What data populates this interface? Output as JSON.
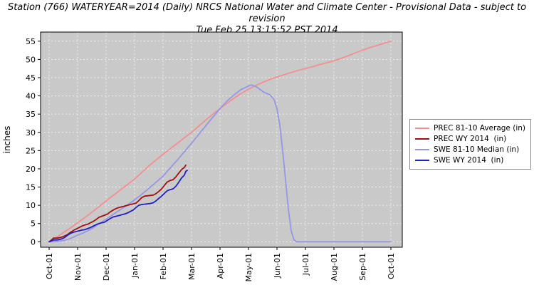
{
  "chart_data": {
    "type": "line",
    "title": "Station (766) WATERYEAR=2014 (Daily) NRCS National Water and Climate Center - Provisional Data - subject to revision",
    "subtitle": "Tue Feb 25 13:15:52 PST 2014",
    "ylabel": "inches",
    "ylim": [
      -1.5,
      57.5
    ],
    "yticks": [
      0,
      5,
      10,
      15,
      20,
      25,
      30,
      35,
      40,
      45,
      50,
      55
    ],
    "xlim": [
      -0.3,
      12.4
    ],
    "xticks": [
      0,
      1,
      2,
      3,
      4,
      5,
      6,
      7,
      8,
      9,
      10,
      11,
      12
    ],
    "xtick_labels": [
      "Oct-01",
      "Nov-01",
      "Dec-01",
      "Jan-01",
      "Feb-01",
      "Mar-01",
      "Apr-01",
      "May-01",
      "Jun-01",
      "Jul-01",
      "Aug-01",
      "Sep-01",
      "Oct-01"
    ],
    "plot_bg": "#c9c9c9",
    "grid_color": "#efefef",
    "axis_color": "#000000",
    "grid": true,
    "legend_position": "right",
    "draw_order": [
      0,
      2,
      1,
      3
    ],
    "series": [
      {
        "name": "PREC 81-10 Average (in)",
        "color": "#f58f8f",
        "x": [
          0,
          0.25,
          0.5,
          0.75,
          1,
          1.25,
          1.5,
          1.75,
          2,
          2.25,
          2.5,
          2.75,
          3,
          3.25,
          3.5,
          3.75,
          4,
          4.25,
          4.5,
          4.75,
          5,
          5.25,
          5.5,
          5.75,
          6,
          6.25,
          6.5,
          6.75,
          7,
          7.25,
          7.5,
          7.75,
          8,
          8.25,
          8.5,
          8.75,
          9,
          9.25,
          9.5,
          9.75,
          10,
          10.25,
          10.5,
          10.75,
          11,
          11.25,
          11.5,
          11.75,
          12
        ],
        "values": [
          0,
          1.2,
          2.5,
          3.8,
          5.2,
          6.6,
          8.1,
          9.6,
          11.2,
          12.7,
          14.2,
          15.7,
          17.2,
          19,
          20.8,
          22.4,
          24,
          25.5,
          27,
          28.5,
          30,
          31.7,
          33.4,
          35,
          36.5,
          38,
          39.4,
          40.7,
          41.8,
          42.8,
          43.7,
          44.5,
          45.2,
          45.8,
          46.4,
          47,
          47.5,
          48,
          48.6,
          49.1,
          49.6,
          50.3,
          51,
          51.8,
          52.5,
          53.2,
          53.8,
          54.4,
          55
        ]
      },
      {
        "name": "PREC WY 2014  (in)",
        "color": "#a01010",
        "x": [
          0,
          0.1,
          0.15,
          0.25,
          0.35,
          0.45,
          0.55,
          0.65,
          0.75,
          0.85,
          0.95,
          1.05,
          1.15,
          1.25,
          1.35,
          1.45,
          1.55,
          1.65,
          1.75,
          1.85,
          1.95,
          2.05,
          2.15,
          2.25,
          2.35,
          2.45,
          2.55,
          2.65,
          2.75,
          2.85,
          2.95,
          3.05,
          3.15,
          3.25,
          3.35,
          3.45,
          3.55,
          3.65,
          3.75,
          3.85,
          3.95,
          4.05,
          4.15,
          4.25,
          4.35,
          4.45,
          4.55,
          4.65,
          4.75,
          4.8
        ],
        "values": [
          0,
          0.6,
          1,
          1,
          1.1,
          1.3,
          1.6,
          2,
          2.6,
          3.1,
          3.5,
          3.9,
          4.3,
          4.6,
          4.8,
          5.2,
          5.6,
          6.1,
          6.7,
          7,
          7.3,
          7.6,
          8.2,
          8.7,
          9.1,
          9.4,
          9.6,
          9.8,
          10,
          10.2,
          10.4,
          10.6,
          11.3,
          12.1,
          12.5,
          12.6,
          12.7,
          12.8,
          13.2,
          13.8,
          14.5,
          15.5,
          16.4,
          16.8,
          17,
          17.8,
          18.8,
          19.8,
          20.4,
          21
        ]
      },
      {
        "name": "SWE 81-10 Median (in)",
        "color": "#9597e6",
        "x": [
          0,
          0.25,
          0.5,
          0.75,
          1,
          1.25,
          1.5,
          1.75,
          2,
          2.25,
          2.5,
          2.75,
          3,
          3.25,
          3.5,
          3.75,
          4,
          4.25,
          4.5,
          4.75,
          5,
          5.25,
          5.5,
          5.75,
          6,
          6.25,
          6.5,
          6.75,
          7,
          7.1,
          7.25,
          7.4,
          7.5,
          7.6,
          7.75,
          7.9,
          8,
          8.1,
          8.2,
          8.3,
          8.4,
          8.5,
          8.6,
          8.7,
          9,
          9.5,
          10,
          10.5,
          11,
          11.5,
          12
        ],
        "values": [
          0,
          0.1,
          0.3,
          0.9,
          1.8,
          2.6,
          3.6,
          4.9,
          6.2,
          7.5,
          8.8,
          10.1,
          11.5,
          13,
          14.6,
          16.3,
          18,
          20.2,
          22.4,
          24.7,
          27,
          29.4,
          31.8,
          34.2,
          36.5,
          38.6,
          40.3,
          41.8,
          42.7,
          43,
          42.6,
          41.8,
          41.2,
          40.8,
          40.3,
          39,
          36.5,
          32,
          25,
          17,
          9,
          3,
          0.5,
          0,
          0,
          0,
          0,
          0,
          0,
          0,
          0
        ]
      },
      {
        "name": "SWE WY 2014  (in)",
        "color": "#2020c0",
        "x": [
          0,
          0.1,
          0.15,
          0.25,
          0.35,
          0.45,
          0.55,
          0.65,
          0.75,
          0.85,
          0.95,
          1.05,
          1.15,
          1.25,
          1.35,
          1.45,
          1.55,
          1.65,
          1.75,
          1.85,
          1.95,
          2.05,
          2.15,
          2.25,
          2.35,
          2.45,
          2.55,
          2.65,
          2.75,
          2.85,
          2.95,
          3.05,
          3.15,
          3.25,
          3.35,
          3.45,
          3.55,
          3.65,
          3.75,
          3.85,
          3.95,
          4.05,
          4.15,
          4.25,
          4.35,
          4.45,
          4.55,
          4.65,
          4.75,
          4.8,
          4.85
        ],
        "values": [
          0,
          0.3,
          0.5,
          0.5,
          0.6,
          0.8,
          1.2,
          1.8,
          2.3,
          2.6,
          2.8,
          3,
          3.2,
          3.3,
          3.6,
          3.9,
          4.3,
          4.7,
          5,
          5.2,
          5.4,
          5.9,
          6.4,
          6.8,
          7,
          7.2,
          7.4,
          7.6,
          7.9,
          8.3,
          8.7,
          9.4,
          10,
          10.2,
          10.3,
          10.4,
          10.5,
          10.7,
          11.2,
          11.9,
          12.5,
          13.3,
          14,
          14.3,
          14.5,
          15.2,
          16.3,
          17.5,
          18.3,
          19.3,
          19.6
        ]
      }
    ]
  }
}
